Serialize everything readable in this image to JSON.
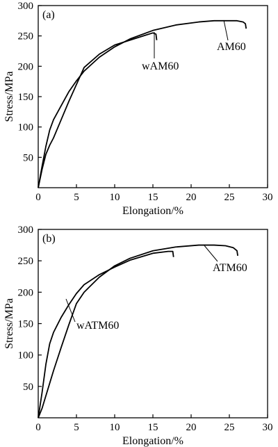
{
  "chart_data": [
    {
      "type": "line",
      "panel_label": "(a)",
      "xlabel": "Elongation/%",
      "ylabel": "Stress/MPa",
      "xlim": [
        0,
        30
      ],
      "ylim": [
        0,
        300
      ],
      "x_ticks": [
        "0",
        "5",
        "10",
        "15",
        "20",
        "25",
        "30"
      ],
      "y_ticks": [
        "50",
        "100",
        "150",
        "200",
        "250",
        "300"
      ],
      "series": [
        {
          "name": "AM60",
          "x": [
            0,
            0.5,
            1.0,
            1.5,
            2,
            3,
            4,
            5,
            6,
            8,
            10,
            12,
            15,
            18,
            21,
            23,
            25,
            26,
            26.8,
            27.1,
            27.2
          ],
          "y": [
            0,
            35,
            68,
            95,
            112,
            135,
            158,
            176,
            192,
            215,
            232,
            245,
            259,
            268,
            273,
            275,
            275,
            275,
            273,
            270,
            262
          ]
        },
        {
          "name": "wAM60",
          "x": [
            0,
            0.5,
            1.0,
            1.5,
            2,
            3,
            4,
            5,
            6,
            8,
            10,
            12,
            14,
            15,
            15.4,
            15.5
          ],
          "y": [
            0,
            30,
            55,
            70,
            82,
            112,
            142,
            170,
            198,
            220,
            235,
            243,
            251,
            255,
            253,
            243
          ]
        }
      ]
    },
    {
      "type": "line",
      "panel_label": "(b)",
      "xlabel": "Elongation/%",
      "ylabel": "Stress/MPa",
      "xlim": [
        0,
        30
      ],
      "ylim": [
        0,
        300
      ],
      "x_ticks": [
        "0",
        "5",
        "10",
        "15",
        "20",
        "25",
        "30"
      ],
      "y_ticks": [
        "50",
        "100",
        "150",
        "200",
        "250",
        "300"
      ],
      "series": [
        {
          "name": "ATM60",
          "x": [
            0,
            0.5,
            1.0,
            1.5,
            2,
            3,
            4,
            5,
            6,
            8,
            10,
            12,
            15,
            18,
            21,
            23,
            24.5,
            25.5,
            26,
            26.1
          ],
          "y": [
            0,
            15,
            35,
            55,
            75,
            112,
            148,
            182,
            200,
            224,
            242,
            254,
            266,
            272,
            275,
            275,
            274,
            271,
            266,
            258
          ]
        },
        {
          "name": "wATM60",
          "x": [
            0,
            0.5,
            1.0,
            1.5,
            2,
            2.5,
            3,
            4,
            5,
            6,
            8,
            9,
            10,
            12,
            15,
            17,
            17.6,
            17.7
          ],
          "y": [
            0,
            40,
            85,
            118,
            136,
            148,
            160,
            180,
            198,
            212,
            228,
            234,
            240,
            251,
            262,
            265,
            265,
            256
          ]
        }
      ]
    }
  ],
  "annotations": {
    "panel_a": {
      "am60": "AM60",
      "wam60": "wAM60"
    },
    "panel_b": {
      "atm60": "ATM60",
      "watm60": "wATM60"
    }
  }
}
